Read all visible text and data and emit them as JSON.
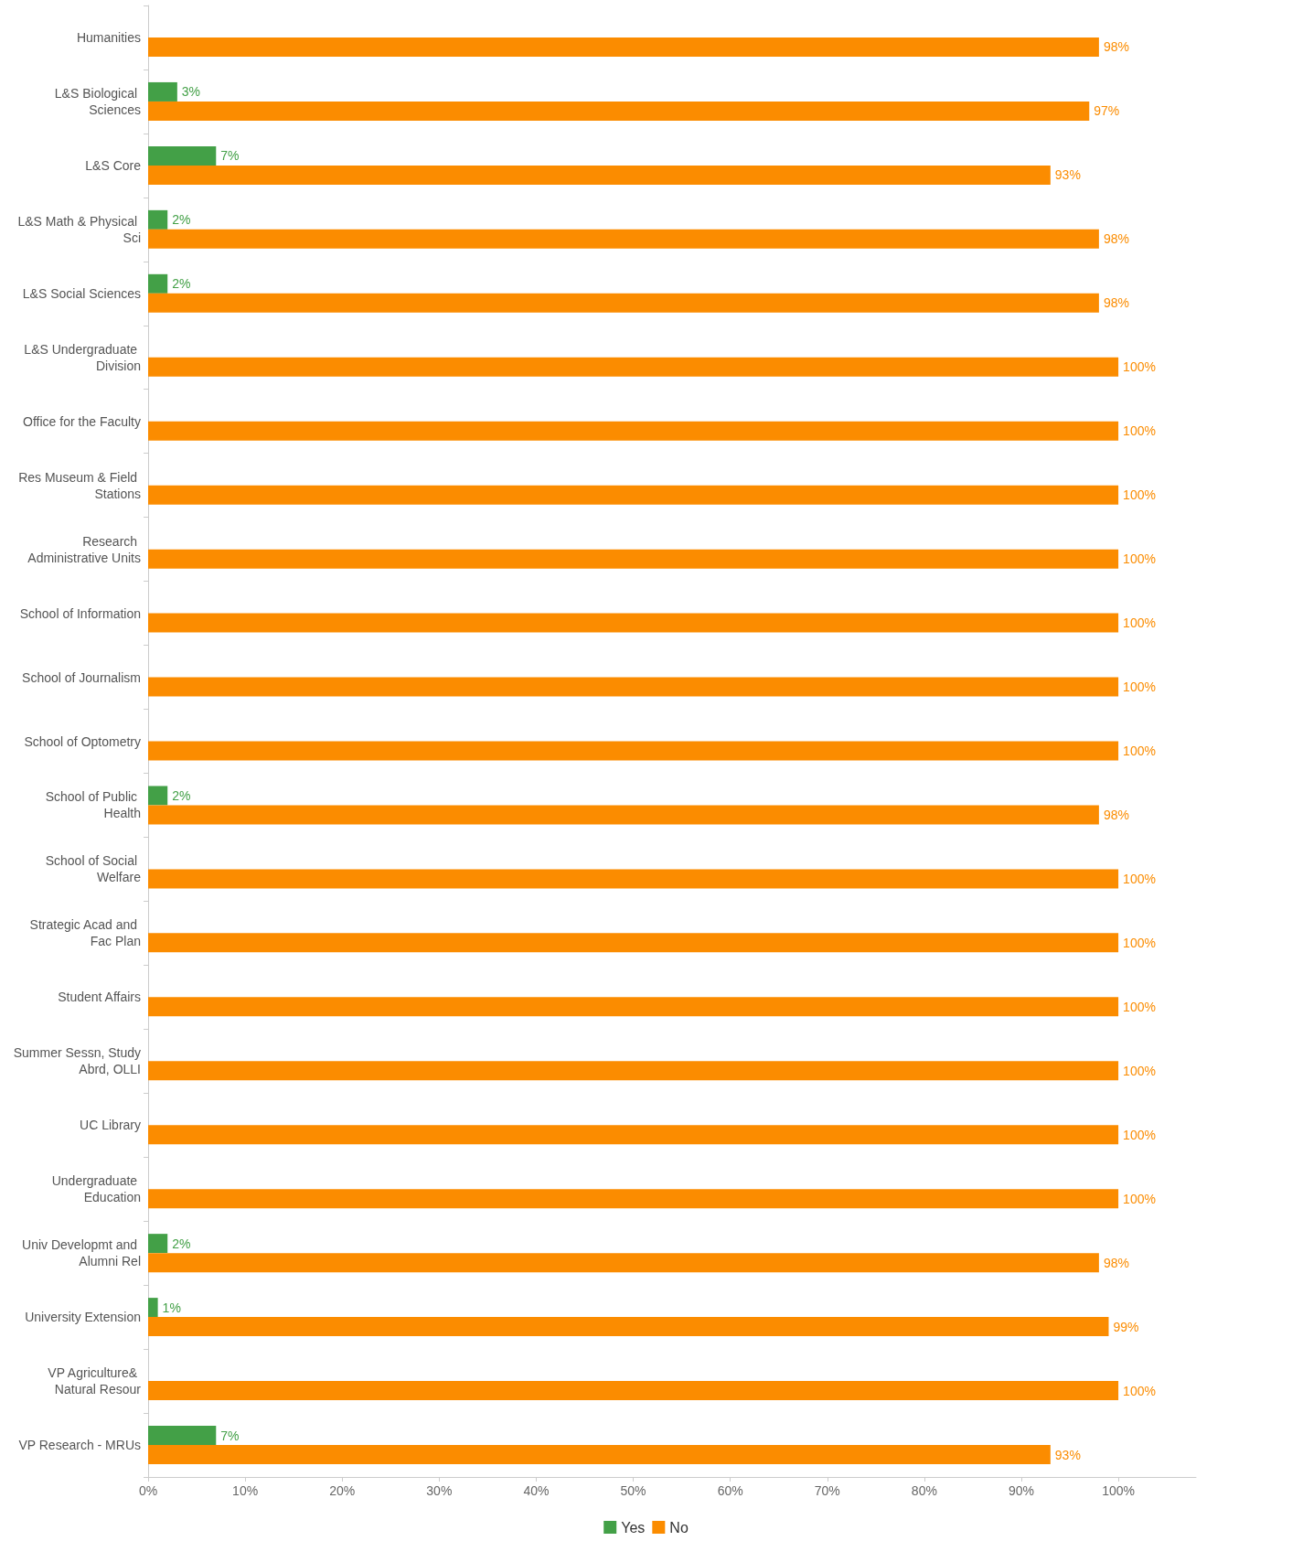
{
  "chart_data": {
    "type": "bar",
    "orientation": "horizontal",
    "categories": [
      "Humanities",
      "L&S Biological Sciences",
      "L&S Core",
      "L&S Math & Physical Sci",
      "L&S Social Sciences",
      "L&S Undergraduate Division",
      "Office for the Faculty",
      "Res Museum & Field Stations",
      "Research Administrative Units",
      "School of Information",
      "School of Journalism",
      "School of Optometry",
      "School of Public Health",
      "School of Social Welfare",
      "Strategic Acad and Fac Plan",
      "Student Affairs",
      "Summer Sessn, Study Abrd, OLLI",
      "UC Library",
      "Undergraduate Education",
      "Univ Developmt and Alumni Rel",
      "University Extension",
      "VP Agriculture& Natural Resour",
      "VP Research - MRUs"
    ],
    "series": [
      {
        "name": "Yes",
        "color": "#43a047",
        "values": [
          null,
          3,
          7,
          2,
          2,
          null,
          null,
          null,
          null,
          null,
          null,
          null,
          2,
          null,
          null,
          null,
          null,
          null,
          null,
          2,
          1,
          null,
          7
        ],
        "value_labels": [
          null,
          "3%",
          "7%",
          "2%",
          "2%",
          null,
          null,
          null,
          null,
          null,
          null,
          null,
          "2%",
          null,
          null,
          null,
          null,
          null,
          null,
          "2%",
          "1%",
          null,
          "7%"
        ]
      },
      {
        "name": "No",
        "color": "#fb8c00",
        "values": [
          98,
          97,
          93,
          98,
          98,
          100,
          100,
          100,
          100,
          100,
          100,
          100,
          98,
          100,
          100,
          100,
          100,
          100,
          100,
          98,
          99,
          100,
          93
        ],
        "value_labels": [
          "98%",
          "97%",
          "93%",
          "98%",
          "98%",
          "100%",
          "100%",
          "100%",
          "100%",
          "100%",
          "100%",
          "100%",
          "98%",
          "100%",
          "100%",
          "100%",
          "100%",
          "100%",
          "100%",
          "98%",
          "99%",
          "100%",
          "93%"
        ]
      }
    ],
    "xlim": [
      0,
      108
    ],
    "xticks": [
      {
        "value": 0,
        "label": "0%"
      },
      {
        "value": 10,
        "label": "10%"
      },
      {
        "value": 20,
        "label": "20%"
      },
      {
        "value": 30,
        "label": "30%"
      },
      {
        "value": 40,
        "label": "40%"
      },
      {
        "value": 50,
        "label": "50%"
      },
      {
        "value": 60,
        "label": "60%"
      },
      {
        "value": 70,
        "label": "70%"
      },
      {
        "value": 80,
        "label": "80%"
      },
      {
        "value": 90,
        "label": "90%"
      },
      {
        "value": 100,
        "label": "100%"
      }
    ],
    "legend": "bottom",
    "grid": false
  }
}
